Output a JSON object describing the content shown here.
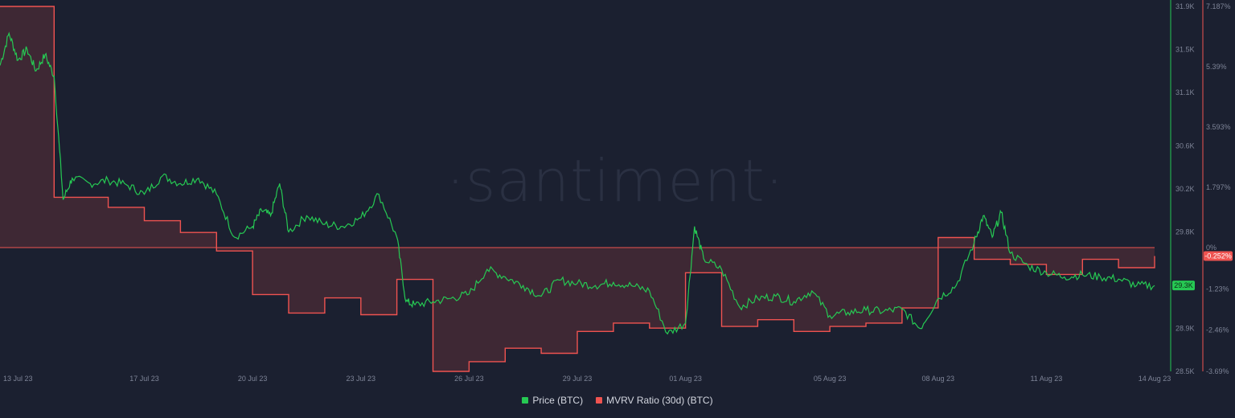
{
  "watermark": "·santiment·",
  "colors": {
    "background": "#1b2030",
    "price": "#26c953",
    "mvrv": "#ef5350",
    "mvrv_fill": "rgba(239,83,80,0.17)"
  },
  "chart_data": {
    "type": "line",
    "x_ticks": [
      "13 Jul 23",
      "17 Jul 23",
      "20 Jul 23",
      "23 Jul 23",
      "26 Jul 23",
      "29 Jul 23",
      "01 Aug 23",
      "05 Aug 23",
      "08 Aug 23",
      "11 Aug 23",
      "14 Aug 23"
    ],
    "y_left_ticks": [
      "31.9K",
      "31.5K",
      "31.1K",
      "30.6K",
      "30.2K",
      "29.8K",
      "28.9K",
      "28.5K"
    ],
    "y_right_ticks": [
      "7.187%",
      "5.39%",
      "3.593%",
      "1.797%",
      "0%",
      "-1.23%",
      "-2.46%",
      "-3.69%"
    ],
    "price_axis": {
      "min": 28500,
      "max": 31900
    },
    "mvrv_axis": {
      "min": -3.69,
      "max": 7.187
    },
    "grid": false,
    "legend_position": "bottom-center",
    "series": [
      {
        "name": "Price (BTC)",
        "axis": "left",
        "current_label": "29.3K",
        "points": [
          [
            "13 Jul 23",
            31350
          ],
          [
            "13 Jul 23 06h",
            31650
          ],
          [
            "13 Jul 23 12h",
            31400
          ],
          [
            "13 Jul 23 18h",
            31500
          ],
          [
            "14 Jul 23",
            31300
          ],
          [
            "14 Jul 23 06h",
            31450
          ],
          [
            "14 Jul 23 12h",
            31250
          ],
          [
            "14 Jul 23 18h",
            30100
          ],
          [
            "15 Jul 23",
            30300
          ],
          [
            "15 Jul 23 12h",
            30250
          ],
          [
            "16 Jul 23",
            30280
          ],
          [
            "16 Jul 23 12h",
            30240
          ],
          [
            "17 Jul 23",
            30150
          ],
          [
            "17 Jul 23 12h",
            30320
          ],
          [
            "18 Jul 23",
            30250
          ],
          [
            "18 Jul 23 12h",
            30300
          ],
          [
            "19 Jul 23",
            30150
          ],
          [
            "19 Jul 23 12h",
            29750
          ],
          [
            "20 Jul 23",
            29850
          ],
          [
            "20 Jul 23 06h",
            30000
          ],
          [
            "20 Jul 23 12h",
            29950
          ],
          [
            "20 Jul 23 18h",
            30250
          ],
          [
            "21 Jul 23",
            29800
          ],
          [
            "21 Jul 23 12h",
            29950
          ],
          [
            "22 Jul 23",
            29870
          ],
          [
            "22 Jul 23 12h",
            29850
          ],
          [
            "23 Jul 23",
            29930
          ],
          [
            "23 Jul 23 12h",
            30150
          ],
          [
            "24 Jul 23",
            29750
          ],
          [
            "24 Jul 23 06h",
            29150
          ],
          [
            "24 Jul 23 12h",
            29120
          ],
          [
            "25 Jul 23",
            29150
          ],
          [
            "25 Jul 23 12h",
            29180
          ],
          [
            "26 Jul 23",
            29220
          ],
          [
            "26 Jul 23 12h",
            29450
          ],
          [
            "27 Jul 23",
            29380
          ],
          [
            "27 Jul 23 12h",
            29300
          ],
          [
            "28 Jul 23",
            29200
          ],
          [
            "28 Jul 23 12h",
            29350
          ],
          [
            "29 Jul 23",
            29320
          ],
          [
            "29 Jul 23 12h",
            29300
          ],
          [
            "30 Jul 23",
            29330
          ],
          [
            "30 Jul 23 12h",
            29300
          ],
          [
            "31 Jul 23",
            29250
          ],
          [
            "31 Jul 23 12h",
            28850
          ],
          [
            "01 Aug 23",
            28950
          ],
          [
            "01 Aug 23 06h",
            29850
          ],
          [
            "01 Aug 23 12h",
            29550
          ],
          [
            "02 Aug 23",
            29450
          ],
          [
            "02 Aug 23 12h",
            29100
          ],
          [
            "03 Aug 23",
            29180
          ],
          [
            "03 Aug 23 12h",
            29200
          ],
          [
            "04 Aug 23",
            29150
          ],
          [
            "04 Aug 23 12h",
            29250
          ],
          [
            "05 Aug 23",
            29020
          ],
          [
            "05 Aug 23 12h",
            29050
          ],
          [
            "06 Aug 23",
            29070
          ],
          [
            "06 Aug 23 12h",
            29060
          ],
          [
            "07 Aug 23",
            29080
          ],
          [
            "07 Aug 23 12h",
            28900
          ],
          [
            "08 Aug 23",
            29180
          ],
          [
            "08 Aug 23 12h",
            29300
          ],
          [
            "09 Aug 23",
            29700
          ],
          [
            "09 Aug 23 06h",
            29950
          ],
          [
            "09 Aug 23 12h",
            29750
          ],
          [
            "09 Aug 23 18h",
            29980
          ],
          [
            "10 Aug 23",
            29600
          ],
          [
            "10 Aug 23 12h",
            29480
          ],
          [
            "11 Aug 23",
            29420
          ],
          [
            "11 Aug 23 12h",
            29380
          ],
          [
            "12 Aug 23",
            29400
          ],
          [
            "12 Aug 23 12h",
            29380
          ],
          [
            "13 Aug 23",
            29360
          ],
          [
            "13 Aug 23 12h",
            29300
          ],
          [
            "14 Aug 23",
            29300
          ]
        ]
      },
      {
        "name": "MVRV Ratio (30d) (BTC)",
        "axis": "right",
        "current_label": "-0.252%",
        "points": [
          [
            "13 Jul 23",
            7.187
          ],
          [
            "14 Jul 23 12h",
            7.187
          ],
          [
            "14 Jul 23 12h",
            1.5
          ],
          [
            "16 Jul 23",
            1.5
          ],
          [
            "16 Jul 23",
            1.2
          ],
          [
            "17 Jul 23",
            1.2
          ],
          [
            "17 Jul 23",
            0.8
          ],
          [
            "18 Jul 23",
            0.8
          ],
          [
            "18 Jul 23",
            0.45
          ],
          [
            "19 Jul 23",
            0.45
          ],
          [
            "19 Jul 23",
            -0.1
          ],
          [
            "20 Jul 23",
            -0.1
          ],
          [
            "20 Jul 23",
            -1.4
          ],
          [
            "21 Jul 23",
            -1.4
          ],
          [
            "21 Jul 23",
            -1.95
          ],
          [
            "22 Jul 23",
            -1.95
          ],
          [
            "22 Jul 23",
            -1.5
          ],
          [
            "23 Jul 23",
            -1.5
          ],
          [
            "23 Jul 23",
            -2.0
          ],
          [
            "24 Jul 23",
            -2.0
          ],
          [
            "24 Jul 23",
            -0.95
          ],
          [
            "25 Jul 23",
            -0.95
          ],
          [
            "25 Jul 23",
            -3.69
          ],
          [
            "26 Jul 23",
            -3.69
          ],
          [
            "26 Jul 23",
            -3.4
          ],
          [
            "27 Jul 23",
            -3.4
          ],
          [
            "27 Jul 23",
            -3.0
          ],
          [
            "28 Jul 23",
            -3.0
          ],
          [
            "28 Jul 23",
            -3.15
          ],
          [
            "29 Jul 23",
            -3.15
          ],
          [
            "29 Jul 23",
            -2.5
          ],
          [
            "30 Jul 23",
            -2.5
          ],
          [
            "30 Jul 23",
            -2.25
          ],
          [
            "31 Jul 23",
            -2.25
          ],
          [
            "31 Jul 23",
            -2.4
          ],
          [
            "01 Aug 23",
            -2.4
          ],
          [
            "01 Aug 23",
            -0.75
          ],
          [
            "02 Aug 23",
            -0.75
          ],
          [
            "02 Aug 23",
            -2.35
          ],
          [
            "03 Aug 23",
            -2.35
          ],
          [
            "03 Aug 23",
            -2.15
          ],
          [
            "04 Aug 23",
            -2.15
          ],
          [
            "04 Aug 23",
            -2.5
          ],
          [
            "05 Aug 23",
            -2.5
          ],
          [
            "05 Aug 23",
            -2.35
          ],
          [
            "06 Aug 23",
            -2.35
          ],
          [
            "06 Aug 23",
            -2.25
          ],
          [
            "07 Aug 23",
            -2.25
          ],
          [
            "07 Aug 23",
            -1.8
          ],
          [
            "08 Aug 23",
            -1.8
          ],
          [
            "08 Aug 23",
            0.3
          ],
          [
            "09 Aug 23",
            0.3
          ],
          [
            "09 Aug 23",
            -0.35
          ],
          [
            "10 Aug 23",
            -0.35
          ],
          [
            "10 Aug 23",
            -0.5
          ],
          [
            "11 Aug 23",
            -0.5
          ],
          [
            "11 Aug 23",
            -0.8
          ],
          [
            "12 Aug 23",
            -0.8
          ],
          [
            "12 Aug 23",
            -0.35
          ],
          [
            "13 Aug 23",
            -0.35
          ],
          [
            "13 Aug 23",
            -0.6
          ],
          [
            "14 Aug 23",
            -0.6
          ],
          [
            "14 Aug 23",
            -0.252
          ]
        ]
      }
    ]
  }
}
